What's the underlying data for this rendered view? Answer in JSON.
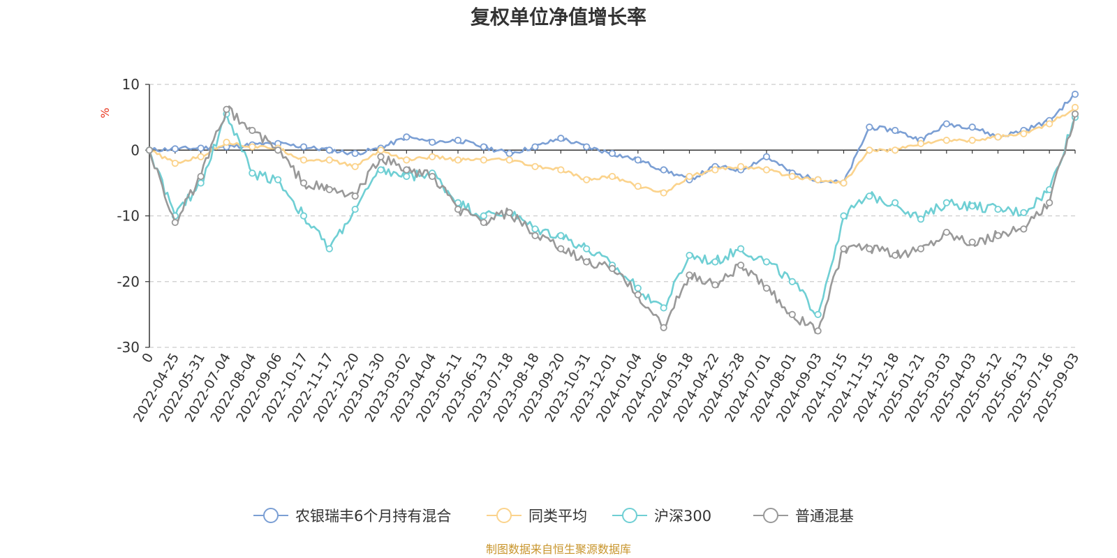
{
  "chart_data": {
    "type": "line",
    "title": "复权单位净值增长率",
    "ylabel": "%",
    "ylim": [
      -30,
      10
    ],
    "yticks": [
      10,
      0,
      -10,
      -20,
      -30
    ],
    "grid": true,
    "legend_position": "bottom",
    "x_tick_labels": [
      "0",
      "2022-04-25",
      "2022-05-31",
      "2022-07-04",
      "2022-08-04",
      "2022-09-06",
      "2022-10-17",
      "2022-11-17",
      "2022-12-20",
      "2023-01-30",
      "2023-03-02",
      "2023-04-04",
      "2023-05-11",
      "2023-06-13",
      "2023-07-18",
      "2023-08-18",
      "2023-09-20",
      "2023-10-31",
      "2023-12-01",
      "2024-01-04",
      "2024-02-06",
      "2024-03-18",
      "2024-04-22",
      "2024-05-28",
      "2024-07-01",
      "2024-08-01",
      "2024-09-03",
      "2024-10-15",
      "2024-11-15",
      "2024-12-18",
      "2025-01-21",
      "2025-03-03",
      "2025-04-03",
      "2025-05-12",
      "2025-06-13",
      "2025-07-16",
      "2025-09-03"
    ],
    "series": [
      {
        "name": "农银瑞丰6个月持有混合",
        "color": "#7b9fd4",
        "values": [
          0,
          0.2,
          0.3,
          0.5,
          0.8,
          1.0,
          0.5,
          0,
          -0.5,
          0.3,
          2,
          1.2,
          1.5,
          0.5,
          -0.5,
          0.5,
          1.8,
          0.5,
          -0.5,
          -1.5,
          -3,
          -4.5,
          -2.5,
          -3,
          -1,
          -3.5,
          -4.5,
          -5,
          3.5,
          3,
          1.5,
          4,
          3.5,
          2,
          3,
          4.5,
          8.5
        ]
      },
      {
        "name": "同类平均",
        "color": "#fbd38c",
        "values": [
          0,
          -2,
          -1,
          1.2,
          0.5,
          0.3,
          -1.5,
          -1.5,
          -2.5,
          0,
          -1.5,
          -1,
          -1.5,
          -1.5,
          -1.5,
          -2.5,
          -3,
          -4.5,
          -4,
          -5.5,
          -6.5,
          -4,
          -3,
          -2.5,
          -3,
          -4,
          -4.5,
          -5,
          0,
          0,
          1,
          1.5,
          1.5,
          2,
          2.5,
          4,
          6.5
        ]
      },
      {
        "name": "沪深300",
        "color": "#6fcfd4",
        "values": [
          0,
          -10,
          -5,
          5.5,
          -3.5,
          -4.5,
          -10,
          -15,
          -9,
          -3,
          -4,
          -3.5,
          -8,
          -10,
          -9.5,
          -12,
          -13,
          -15,
          -17.5,
          -21,
          -24,
          -16,
          -17,
          -15,
          -17,
          -20,
          -25,
          -10,
          -7,
          -8,
          -10.5,
          -8,
          -8.5,
          -9,
          -9.5,
          -6,
          5
        ]
      },
      {
        "name": "普通混基",
        "color": "#999999",
        "values": [
          0,
          -11,
          -4,
          6.2,
          3,
          0,
          -5,
          -6,
          -7,
          -1,
          -3,
          -4,
          -9,
          -11,
          -9.5,
          -13,
          -15,
          -17,
          -18,
          -22,
          -27,
          -19,
          -20.5,
          -17.5,
          -21,
          -25,
          -27.5,
          -15,
          -15,
          -16,
          -15,
          -12.5,
          -14,
          -13,
          -12,
          -8,
          5.5
        ]
      }
    ]
  },
  "footer": {
    "source": "制图数据来自恒生聚源数据库"
  }
}
